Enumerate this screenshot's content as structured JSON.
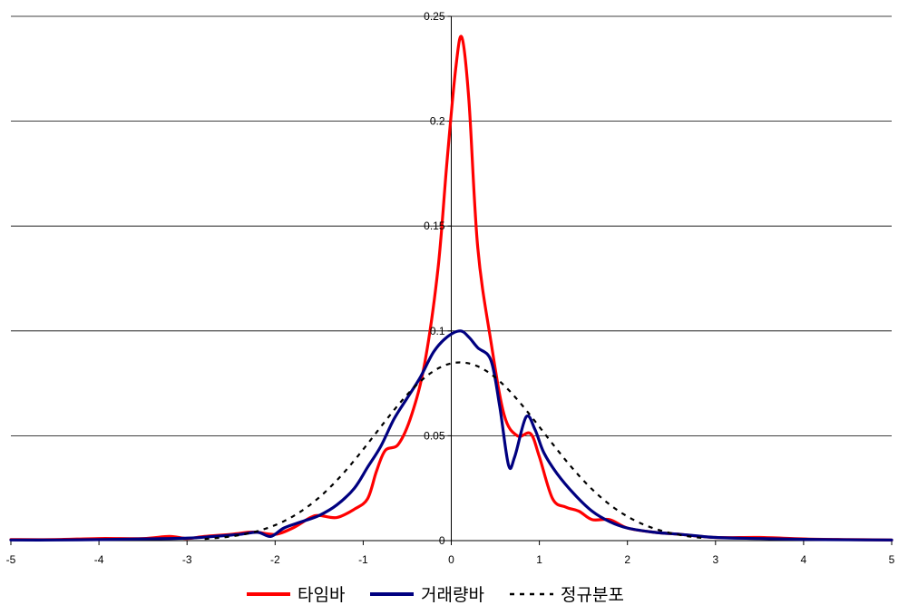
{
  "chart_data": {
    "type": "line",
    "title": "",
    "xlabel": "",
    "ylabel": "",
    "xlim": [
      -5,
      5
    ],
    "ylim": [
      0,
      0.25
    ],
    "x_ticks": [
      -5,
      -4,
      -3,
      -2,
      -1,
      0,
      1,
      2,
      3,
      4,
      5
    ],
    "x_tick_labels": [
      "-5",
      "-4",
      "-3",
      "-2",
      "-1",
      "0",
      "1",
      "2",
      "3",
      "4",
      "5"
    ],
    "y_ticks": [
      0,
      0.05,
      0.1,
      0.15,
      0.2,
      0.25
    ],
    "y_tick_labels": [
      "0",
      "0.05",
      "0.1",
      "0.15",
      "0.2",
      "0.25"
    ],
    "grid": "horizontal",
    "legend_position": "bottom",
    "series": [
      {
        "name": "타임바",
        "color": "#ff0000",
        "style": "solid",
        "points": [
          [
            -5,
            0.0005
          ],
          [
            -4.5,
            0.0005
          ],
          [
            -4,
            0.001
          ],
          [
            -3.5,
            0.001
          ],
          [
            -3.2,
            0.002
          ],
          [
            -3,
            0.001
          ],
          [
            -2.8,
            0.002
          ],
          [
            -2.5,
            0.003
          ],
          [
            -2.3,
            0.004
          ],
          [
            -2.2,
            0.004
          ],
          [
            -2,
            0.003
          ],
          [
            -1.8,
            0.006
          ],
          [
            -1.6,
            0.011
          ],
          [
            -1.5,
            0.012
          ],
          [
            -1.3,
            0.011
          ],
          [
            -1.1,
            0.015
          ],
          [
            -0.95,
            0.02
          ],
          [
            -0.85,
            0.033
          ],
          [
            -0.75,
            0.043
          ],
          [
            -0.6,
            0.046
          ],
          [
            -0.45,
            0.06
          ],
          [
            -0.3,
            0.085
          ],
          [
            -0.15,
            0.13
          ],
          [
            -0.05,
            0.18
          ],
          [
            0.05,
            0.225
          ],
          [
            0.12,
            0.24
          ],
          [
            0.2,
            0.21
          ],
          [
            0.3,
            0.14
          ],
          [
            0.45,
            0.095
          ],
          [
            0.6,
            0.06
          ],
          [
            0.75,
            0.05
          ],
          [
            0.9,
            0.051
          ],
          [
            1,
            0.04
          ],
          [
            1.15,
            0.02
          ],
          [
            1.3,
            0.016
          ],
          [
            1.45,
            0.014
          ],
          [
            1.6,
            0.01
          ],
          [
            1.8,
            0.01
          ],
          [
            2,
            0.006
          ],
          [
            2.3,
            0.004
          ],
          [
            2.6,
            0.003
          ],
          [
            3,
            0.0015
          ],
          [
            3.5,
            0.0015
          ],
          [
            4,
            0.0008
          ],
          [
            4.5,
            0.0005
          ],
          [
            5,
            0.0003
          ]
        ]
      },
      {
        "name": "거래량바",
        "color": "#000080",
        "style": "solid",
        "points": [
          [
            -5,
            0.0003
          ],
          [
            -4.5,
            0.0003
          ],
          [
            -4,
            0.0005
          ],
          [
            -3.5,
            0.0008
          ],
          [
            -3,
            0.0012
          ],
          [
            -2.7,
            0.002
          ],
          [
            -2.4,
            0.003
          ],
          [
            -2.2,
            0.004
          ],
          [
            -2.05,
            0.002
          ],
          [
            -1.9,
            0.006
          ],
          [
            -1.7,
            0.009
          ],
          [
            -1.5,
            0.012
          ],
          [
            -1.3,
            0.017
          ],
          [
            -1.1,
            0.025
          ],
          [
            -0.95,
            0.035
          ],
          [
            -0.8,
            0.045
          ],
          [
            -0.65,
            0.058
          ],
          [
            -0.5,
            0.068
          ],
          [
            -0.35,
            0.078
          ],
          [
            -0.2,
            0.09
          ],
          [
            -0.05,
            0.097
          ],
          [
            0.1,
            0.1
          ],
          [
            0.2,
            0.097
          ],
          [
            0.3,
            0.092
          ],
          [
            0.45,
            0.086
          ],
          [
            0.55,
            0.064
          ],
          [
            0.65,
            0.036
          ],
          [
            0.72,
            0.04
          ],
          [
            0.85,
            0.059
          ],
          [
            0.95,
            0.053
          ],
          [
            1.05,
            0.042
          ],
          [
            1.2,
            0.032
          ],
          [
            1.4,
            0.022
          ],
          [
            1.6,
            0.014
          ],
          [
            1.8,
            0.009
          ],
          [
            2,
            0.006
          ],
          [
            2.3,
            0.004
          ],
          [
            2.6,
            0.003
          ],
          [
            3,
            0.0015
          ],
          [
            3.5,
            0.001
          ],
          [
            4,
            0.0006
          ],
          [
            4.5,
            0.0004
          ],
          [
            5,
            0.0003
          ]
        ]
      },
      {
        "name": "정규분포",
        "color": "#000000",
        "style": "dashed",
        "mean": 0.1,
        "sd": 0.95,
        "peak": 0.085
      }
    ]
  }
}
